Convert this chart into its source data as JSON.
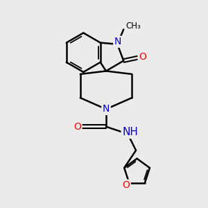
{
  "bg_color": "#ebebeb",
  "atom_color_N": "#0000cc",
  "atom_color_O": "#ff0000",
  "bond_color": "#000000",
  "bond_width": 1.8,
  "font_size": 10,
  "figsize": [
    3.0,
    3.0
  ],
  "dpi": 100,
  "xlim": [
    0,
    10
  ],
  "ylim": [
    0,
    10
  ]
}
